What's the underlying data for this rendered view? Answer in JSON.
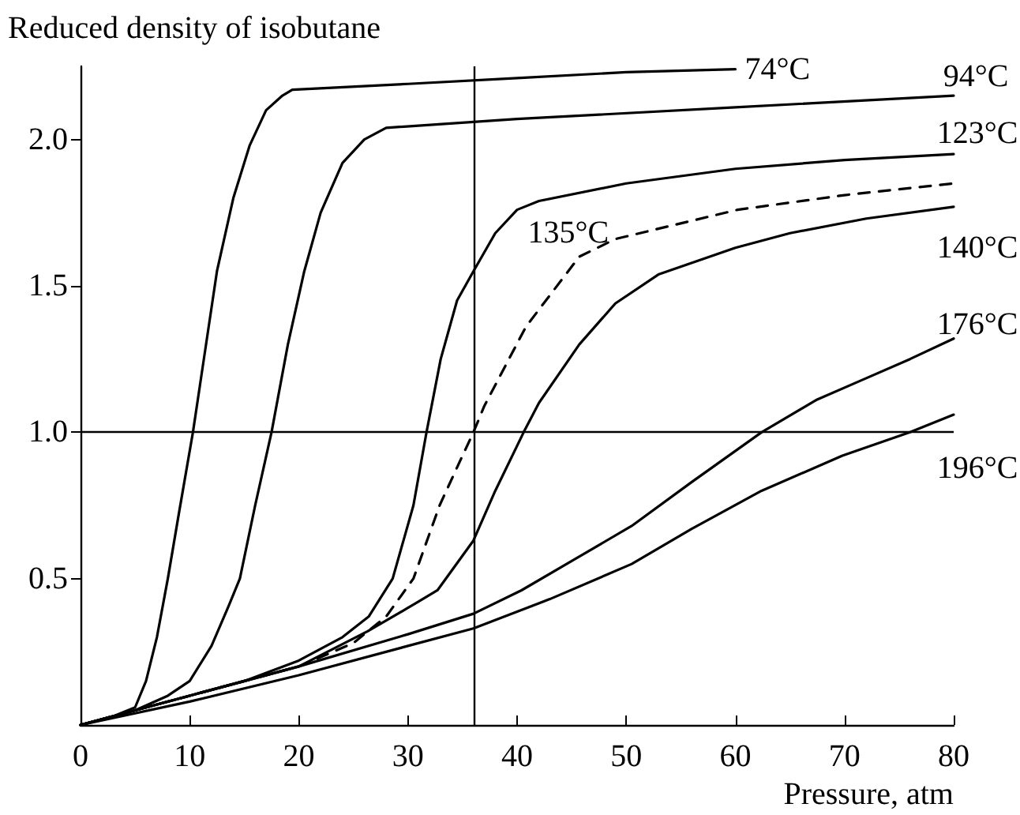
{
  "chart_data": {
    "type": "line",
    "ylabel": "Reduced density of isobutane",
    "xlabel": "Pressure, atm",
    "xlim": [
      0,
      80
    ],
    "ylim": [
      0,
      2.25
    ],
    "xticks": [
      0,
      10,
      20,
      30,
      40,
      50,
      60,
      70,
      80
    ],
    "yticks": [
      {
        "value": 0.5,
        "label": "0.5"
      },
      {
        "value": 1,
        "label": "1.0"
      },
      {
        "value": 1.5,
        "label": "1.5"
      },
      {
        "value": 2,
        "label": "2.0"
      }
    ],
    "grid": false,
    "legend": false,
    "marker": "none",
    "line_style": "solid",
    "series": [
      {
        "name": "74°C",
        "color": "#000000",
        "x": [
          0,
          3,
          5,
          6,
          7,
          8,
          9,
          10.3,
          11.5,
          12.5,
          14,
          15.5,
          17,
          18.5,
          19.4,
          30,
          40,
          50,
          60
        ],
        "values": [
          0,
          0.03,
          0.06,
          0.15,
          0.3,
          0.5,
          0.72,
          1.0,
          1.3,
          1.55,
          1.8,
          1.98,
          2.1,
          2.15,
          2.17,
          2.19,
          2.21,
          2.23,
          2.24
        ]
      },
      {
        "name": "94°C",
        "color": "#000000",
        "x": [
          0,
          5,
          8,
          10,
          12,
          13.5,
          14.6,
          16,
          17.5,
          19,
          20.5,
          22,
          24,
          26,
          28,
          40,
          60,
          80
        ],
        "values": [
          0,
          0.05,
          0.1,
          0.15,
          0.27,
          0.4,
          0.5,
          0.75,
          1.0,
          1.3,
          1.55,
          1.75,
          1.92,
          2.0,
          2.04,
          2.07,
          2.11,
          2.15
        ]
      },
      {
        "name": "123°C",
        "color": "#000000",
        "x": [
          0,
          10,
          15,
          20,
          24,
          26.4,
          28.6,
          30.5,
          31.7,
          33,
          34.5,
          36,
          38,
          40,
          42,
          50,
          60,
          70,
          80
        ],
        "values": [
          0,
          0.1,
          0.15,
          0.22,
          0.3,
          0.37,
          0.5,
          0.75,
          1.0,
          1.25,
          1.45,
          1.55,
          1.68,
          1.76,
          1.79,
          1.85,
          1.9,
          1.93,
          1.95
        ]
      },
      {
        "name": "135°C",
        "color": "#000000",
        "line_style": "dashed",
        "x": [
          0,
          10,
          20,
          25,
          28,
          30.5,
          32.9,
          34.5,
          36,
          37,
          40.8,
          45.7,
          49,
          60.2,
          70,
          80
        ],
        "values": [
          0,
          0.1,
          0.2,
          0.28,
          0.37,
          0.5,
          0.75,
          0.88,
          1.0,
          1.09,
          1.36,
          1.6,
          1.66,
          1.76,
          1.81,
          1.85
        ]
      },
      {
        "name": "140°C",
        "color": "#000000",
        "x": [
          0,
          10,
          20,
          26.3,
          30,
          32.7,
          36,
          38,
          40.6,
          42,
          45.7,
          49,
          53,
          60,
          65,
          72,
          80
        ],
        "values": [
          0,
          0.1,
          0.2,
          0.32,
          0.4,
          0.46,
          0.63,
          0.8,
          1.0,
          1.1,
          1.3,
          1.44,
          1.54,
          1.63,
          1.68,
          1.73,
          1.77
        ]
      },
      {
        "name": "176°C",
        "color": "#000000",
        "x": [
          0,
          10,
          20,
          30,
          36,
          40.4,
          45,
          50.5,
          56,
          62.4,
          67.4,
          71.7,
          76,
          80
        ],
        "values": [
          0,
          0.1,
          0.2,
          0.31,
          0.38,
          0.46,
          0.56,
          0.68,
          0.83,
          1.0,
          1.11,
          1.18,
          1.25,
          1.32
        ]
      },
      {
        "name": "196°C",
        "color": "#000000",
        "x": [
          0,
          10,
          20,
          30,
          36,
          43,
          50.5,
          56,
          62.4,
          69.8,
          76,
          80
        ],
        "values": [
          0,
          0.08,
          0.17,
          0.27,
          0.33,
          0.43,
          0.55,
          0.67,
          0.8,
          0.92,
          1.0,
          1.06
        ]
      }
    ],
    "ref_lines": [
      {
        "axis": "x",
        "value": 36,
        "color": "#000000"
      },
      {
        "axis": "y",
        "value": 1.0,
        "color": "#000000"
      }
    ]
  }
}
